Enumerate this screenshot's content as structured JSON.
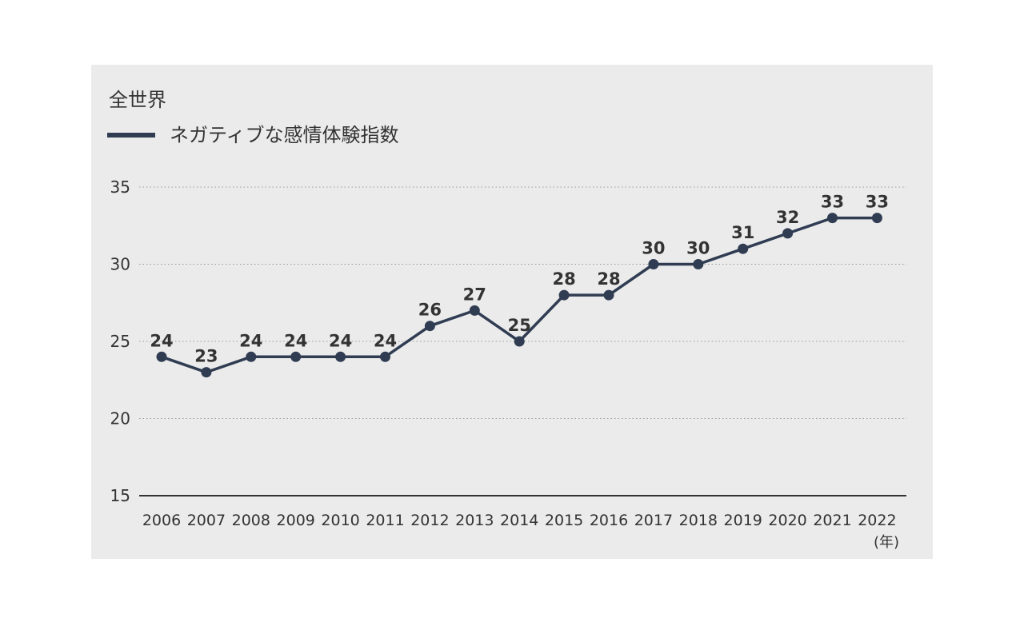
{
  "chart_data": {
    "type": "line",
    "title": "全世界",
    "xlabel": "",
    "ylabel": "",
    "x_unit_label": "(年)",
    "categories": [
      "2006",
      "2007",
      "2008",
      "2009",
      "2010",
      "2011",
      "2012",
      "2013",
      "2014",
      "2015",
      "2016",
      "2017",
      "2018",
      "2019",
      "2020",
      "2021",
      "2022"
    ],
    "series": [
      {
        "name": "ネガティブな感情体験指数",
        "values": [
          24,
          23,
          24,
          24,
          24,
          24,
          26,
          27,
          25,
          28,
          28,
          30,
          30,
          31,
          32,
          33,
          33
        ],
        "color": "#2f3c52"
      }
    ],
    "ylim": [
      15,
      35
    ],
    "y_ticks": [
      15,
      20,
      25,
      30,
      35
    ],
    "grid": "horizontal dotted",
    "legend_placement": "top-left",
    "background": "#ebebeb"
  }
}
